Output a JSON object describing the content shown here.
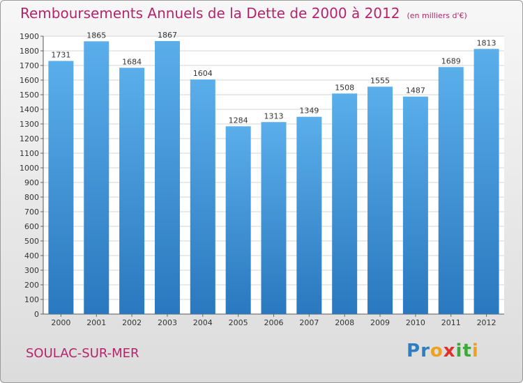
{
  "chart_data": {
    "type": "bar",
    "title": "Remboursements Annuels de la Dette de 2000 à 2012",
    "subtitle": "(en milliers d'€)",
    "categories": [
      "2000",
      "2001",
      "2002",
      "2003",
      "2004",
      "2005",
      "2006",
      "2007",
      "2008",
      "2009",
      "2010",
      "2011",
      "2012"
    ],
    "values": [
      1731,
      1865,
      1684,
      1867,
      1604,
      1284,
      1313,
      1349,
      1508,
      1555,
      1487,
      1689,
      1813
    ],
    "ylim": [
      0,
      1900
    ],
    "ytick_step": 100,
    "grid": true,
    "bar_color": "#3d8fd6",
    "title_color": "#b5246b"
  },
  "footer": {
    "city": "SOULAC-SUR-MER",
    "logo": {
      "letters": [
        "P",
        "r",
        "o",
        "x",
        "i",
        "t",
        "i"
      ],
      "colors": [
        "#2e7fc2",
        "#2e7fc2",
        "#f0a020",
        "#e0302a",
        "#3fa83a",
        "#3fa83a",
        "#f0a020"
      ]
    }
  }
}
